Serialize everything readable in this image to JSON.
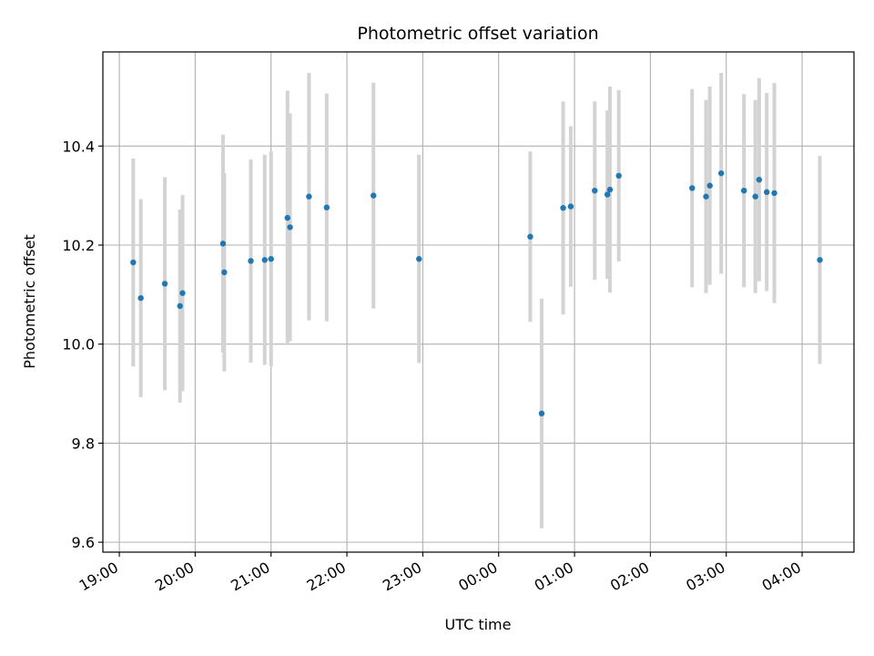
{
  "chart_data": {
    "type": "scatter",
    "title": "Photometric offset variation",
    "xlabel": "UTC time",
    "ylabel": "Photometric offset",
    "x_ticks": [
      "19:00",
      "20:00",
      "21:00",
      "22:00",
      "23:00",
      "00:00",
      "01:00",
      "02:00",
      "03:00",
      "04:00"
    ],
    "y_ticks": [
      "9.6",
      "9.8",
      "10.0",
      "10.2",
      "10.4"
    ],
    "xlim": [
      "18:47",
      "04:41"
    ],
    "ylim": [
      9.58,
      10.59
    ],
    "grid": true,
    "colors": {
      "point": "#1f77b4",
      "errorbar": "#d3d3d3",
      "grid": "#b0b0b0"
    },
    "points": [
      {
        "x": "19:11",
        "y": 10.165,
        "err": 0.21
      },
      {
        "x": "19:17",
        "y": 10.093,
        "err": 0.2
      },
      {
        "x": "19:36",
        "y": 10.122,
        "err": 0.215
      },
      {
        "x": "19:48",
        "y": 10.077,
        "err": 0.195
      },
      {
        "x": "19:50",
        "y": 10.103,
        "err": 0.198
      },
      {
        "x": "20:22",
        "y": 10.203,
        "err": 0.22
      },
      {
        "x": "20:23",
        "y": 10.145,
        "err": 0.2
      },
      {
        "x": "20:44",
        "y": 10.168,
        "err": 0.205
      },
      {
        "x": "20:55",
        "y": 10.17,
        "err": 0.212
      },
      {
        "x": "21:00",
        "y": 10.172,
        "err": 0.217
      },
      {
        "x": "21:13",
        "y": 10.255,
        "err": 0.257
      },
      {
        "x": "21:15",
        "y": 10.236,
        "err": 0.23
      },
      {
        "x": "21:30",
        "y": 10.298,
        "err": 0.25
      },
      {
        "x": "21:44",
        "y": 10.276,
        "err": 0.23
      },
      {
        "x": "22:21",
        "y": 10.3,
        "err": 0.228
      },
      {
        "x": "22:57",
        "y": 10.172,
        "err": 0.21
      },
      {
        "x": "00:25",
        "y": 10.217,
        "err": 0.172
      },
      {
        "x": "00:34",
        "y": 9.86,
        "err": 0.232
      },
      {
        "x": "00:51",
        "y": 10.275,
        "err": 0.215
      },
      {
        "x": "00:57",
        "y": 10.278,
        "err": 0.162
      },
      {
        "x": "01:16",
        "y": 10.31,
        "err": 0.18
      },
      {
        "x": "01:26",
        "y": 10.302,
        "err": 0.17
      },
      {
        "x": "01:28",
        "y": 10.312,
        "err": 0.208
      },
      {
        "x": "01:35",
        "y": 10.34,
        "err": 0.173
      },
      {
        "x": "02:33",
        "y": 10.315,
        "err": 0.2
      },
      {
        "x": "02:44",
        "y": 10.298,
        "err": 0.195
      },
      {
        "x": "02:47",
        "y": 10.32,
        "err": 0.2
      },
      {
        "x": "02:56",
        "y": 10.345,
        "err": 0.203
      },
      {
        "x": "03:14",
        "y": 10.31,
        "err": 0.195
      },
      {
        "x": "03:23",
        "y": 10.298,
        "err": 0.195
      },
      {
        "x": "03:26",
        "y": 10.332,
        "err": 0.205
      },
      {
        "x": "03:32",
        "y": 10.307,
        "err": 0.2
      },
      {
        "x": "03:38",
        "y": 10.305,
        "err": 0.222
      },
      {
        "x": "04:14",
        "y": 10.17,
        "err": 0.21
      }
    ]
  }
}
